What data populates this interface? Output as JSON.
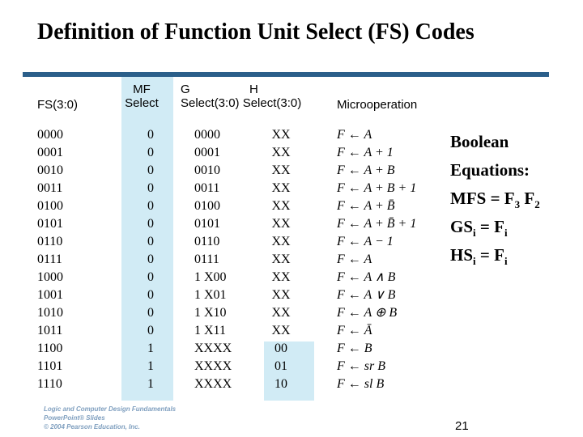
{
  "title": "Definition of Function Unit Select (FS) Codes",
  "headers": {
    "fs": "FS(3:0)",
    "mf_line1": "MF",
    "mf_line2": "Select",
    "g_line1": "G",
    "h_line1": "H",
    "gh_line2": "Select(3:0) Select(3:0)",
    "micro": "Microoperation"
  },
  "rows": [
    {
      "fs": "0000",
      "mf": "0",
      "g": "0000",
      "h": "XX",
      "op": "F ← A"
    },
    {
      "fs": "0001",
      "mf": "0",
      "g": "0001",
      "h": "XX",
      "op": "F ← A + 1"
    },
    {
      "fs": "0010",
      "mf": "0",
      "g": "0010",
      "h": "XX",
      "op": "F ← A + B"
    },
    {
      "fs": "0011",
      "mf": "0",
      "g": "0011",
      "h": "XX",
      "op": "F ← A + B + 1"
    },
    {
      "fs": "0100",
      "mf": "0",
      "g": "0100",
      "h": "XX",
      "op": "F ← A + B̄"
    },
    {
      "fs": "0101",
      "mf": "0",
      "g": "0101",
      "h": "XX",
      "op": "F ← A + B̄ + 1"
    },
    {
      "fs": "0110",
      "mf": "0",
      "g": "0110",
      "h": "XX",
      "op": "F ← A − 1"
    },
    {
      "fs": "0111",
      "mf": "0",
      "g": "0111",
      "h": "XX",
      "op": "F ← A"
    },
    {
      "fs": "1000",
      "mf": "0",
      "g": "1 X00",
      "h": "XX",
      "op": "F ← A ∧ B"
    },
    {
      "fs": "1001",
      "mf": "0",
      "g": "1 X01",
      "h": "XX",
      "op": "F ← A ∨ B"
    },
    {
      "fs": "1010",
      "mf": "0",
      "g": "1 X10",
      "h": "XX",
      "op": "F ← A ⊕ B"
    },
    {
      "fs": "1011",
      "mf": "0",
      "g": "1 X11",
      "h": "XX",
      "op": "F ← Ā"
    },
    {
      "fs": "1100",
      "mf": "1",
      "g": "XXXX",
      "h": "00",
      "op": "F ← B"
    },
    {
      "fs": "1101",
      "mf": "1",
      "g": "XXXX",
      "h": "01",
      "op": "F ← sr B"
    },
    {
      "fs": "1110",
      "mf": "1",
      "g": "XXXX",
      "h": "10",
      "op": "F ← sl B"
    }
  ],
  "boolean": {
    "line1": "Boolean",
    "line2": "Equations:",
    "mfs": "MFS = F",
    "mfs_sub1": "3",
    "mfs_f2": " F",
    "mfs_sub2": "2",
    "gs": "GS",
    "gs_sub": "i",
    "gs_eq": " = F",
    "gs_sub2": "i",
    "hs": "HS",
    "hs_sub": "i",
    "hs_eq": " = F",
    "hs_sub2": "i"
  },
  "footer": {
    "line1": "Logic and Computer Design Fundamentals",
    "line2": "PowerPoint® Slides",
    "line3": "© 2004 Pearson Education, Inc."
  },
  "page_number": "21",
  "colors": {
    "shade": "#d1ebf5",
    "rule": "#2b5f8a",
    "footer": "#7f9fbf"
  }
}
